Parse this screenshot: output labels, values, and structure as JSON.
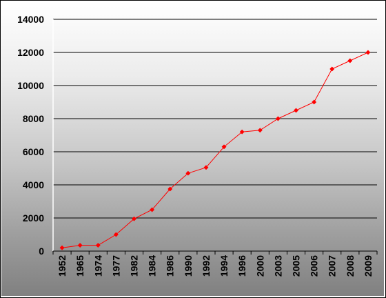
{
  "chart_data": {
    "type": "line",
    "title": "",
    "xlabel": "",
    "ylabel": "",
    "categories": [
      "1952",
      "1965",
      "1974",
      "1977",
      "1982",
      "1984",
      "1986",
      "1990",
      "1992",
      "1994",
      "1996",
      "2000",
      "2003",
      "2005",
      "2006",
      "2007",
      "2008",
      "2009"
    ],
    "series": [
      {
        "values": [
          200,
          350,
          350,
          1000,
          1950,
          2500,
          3750,
          4700,
          5050,
          6300,
          7200,
          7300,
          8000,
          8500,
          9000,
          11000,
          11500,
          12000
        ],
        "color": "#ff0000",
        "marker": "diamond"
      }
    ],
    "ylim": [
      0,
      14000
    ],
    "yticks": [
      0,
      2000,
      4000,
      6000,
      8000,
      10000,
      12000,
      14000
    ],
    "grid": true,
    "legend": "none",
    "plot_background": "gradient light-to-dark gray"
  }
}
